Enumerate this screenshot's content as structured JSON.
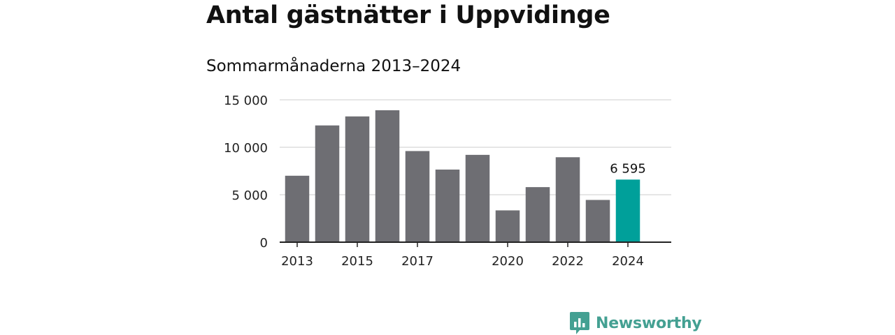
{
  "title": "Antal gästnätter i Uppvidinge",
  "subtitle": "Sommarmånaderna 2013–2024",
  "brand": {
    "name": "Newsworthy",
    "icon": "newsworthy-logo-icon",
    "color": "#44a092"
  },
  "colors": {
    "bar": "#6e6e73",
    "highlight": "#00a09a",
    "grid": "#dddddd",
    "axis": "#222222"
  },
  "chart_data": {
    "type": "bar",
    "title": "Antal gästnätter i Uppvidinge",
    "subtitle": "Sommarmånaderna 2013–2024",
    "xlabel": "",
    "ylabel": "",
    "categories": [
      "2013",
      "2014",
      "2015",
      "2016",
      "2017",
      "2018",
      "2019",
      "2020",
      "2021",
      "2022",
      "2023",
      "2024"
    ],
    "values": [
      7000,
      12300,
      13250,
      13900,
      9600,
      7650,
      9200,
      3350,
      5800,
      8950,
      4450,
      6595
    ],
    "ylim": [
      0,
      15000
    ],
    "yticks": [
      0,
      5000,
      10000,
      15000
    ],
    "ytick_labels": [
      "0",
      "5 000",
      "10 000",
      "15 000"
    ],
    "xtick_labels": [
      "2013",
      "",
      "2015",
      "",
      "2017",
      "",
      "",
      "2020",
      "",
      "2022",
      "",
      "2024"
    ],
    "highlight_index": 11,
    "annotation": {
      "category": "2024",
      "text": "6 595"
    },
    "grid": true,
    "legend": "none"
  }
}
